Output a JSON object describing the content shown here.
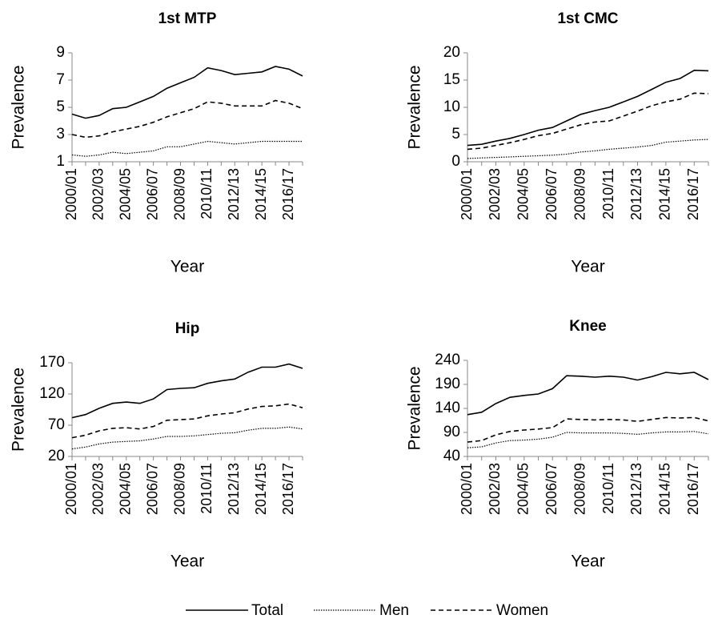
{
  "chart_data": [
    {
      "type": "line",
      "title": "1st MTP",
      "xlabel": "Year",
      "ylabel": "Prevalence",
      "categories": [
        "2000/01",
        null,
        "2002/03",
        null,
        "2004/05",
        null,
        "2006/07",
        null,
        "2008/09",
        null,
        "2010/11",
        null,
        "2012/13",
        null,
        "2014/15",
        null,
        "2016/17",
        null
      ],
      "ylim": [
        1,
        9
      ],
      "yticks": [
        1,
        3,
        5,
        7,
        9
      ],
      "series": [
        {
          "name": "Total",
          "color": "#000000",
          "dash": "solid",
          "values": [
            4.5,
            4.2,
            4.4,
            4.9,
            5.0,
            5.4,
            5.8,
            6.4,
            6.8,
            7.2,
            7.9,
            7.7,
            7.4,
            7.5,
            7.6,
            8.0,
            7.8,
            7.3
          ]
        },
        {
          "name": "Men",
          "color": "#000000",
          "dash": "dotted",
          "values": [
            1.5,
            1.4,
            1.5,
            1.7,
            1.6,
            1.7,
            1.8,
            2.1,
            2.1,
            2.3,
            2.5,
            2.4,
            2.3,
            2.4,
            2.5,
            2.5,
            2.5,
            2.5
          ]
        },
        {
          "name": "Women",
          "color": "#000000",
          "dash": "dashed",
          "values": [
            3.0,
            2.8,
            2.9,
            3.2,
            3.4,
            3.6,
            3.9,
            4.3,
            4.6,
            4.9,
            5.4,
            5.3,
            5.1,
            5.1,
            5.1,
            5.5,
            5.3,
            4.9
          ]
        }
      ]
    },
    {
      "type": "line",
      "title": "1st CMC",
      "xlabel": "Year",
      "ylabel": "Prevalence",
      "categories": [
        "2000/01",
        null,
        "2002/03",
        null,
        "2004/05",
        null,
        "2006/07",
        null,
        "2008/09",
        null,
        "2010/11",
        null,
        "2012/13",
        null,
        "2014/15",
        null,
        "2016/17",
        null
      ],
      "ylim": [
        0,
        20
      ],
      "yticks": [
        0,
        5,
        10,
        15,
        20
      ],
      "series": [
        {
          "color": "#000000",
          "dash": "solid",
          "values": [
            3.0,
            3.2,
            3.8,
            4.3,
            5.0,
            5.8,
            6.3,
            7.5,
            8.7,
            9.4,
            10.0,
            11.0,
            12.0,
            13.3,
            14.6,
            15.3,
            16.8,
            16.7
          ]
        },
        {
          "color": "#000000",
          "dash": "dotted",
          "values": [
            0.6,
            0.7,
            0.8,
            0.9,
            1.0,
            1.1,
            1.2,
            1.4,
            1.8,
            2.0,
            2.3,
            2.5,
            2.7,
            3.0,
            3.6,
            3.8,
            4.0,
            4.1
          ]
        },
        {
          "color": "#000000",
          "dash": "dashed",
          "values": [
            2.3,
            2.5,
            3.0,
            3.5,
            4.1,
            4.8,
            5.2,
            6.0,
            6.8,
            7.3,
            7.5,
            8.4,
            9.3,
            10.3,
            11.0,
            11.5,
            12.6,
            12.5
          ]
        }
      ]
    },
    {
      "type": "line",
      "title": "Hip",
      "xlabel": "Year",
      "ylabel": "Prevalence",
      "categories": [
        "2000/01",
        null,
        "2002/03",
        null,
        "2004/05",
        null,
        "2006/07",
        null,
        "2008/09",
        null,
        "2010/11",
        null,
        "2012/13",
        null,
        "2014/15",
        null,
        "2016/17",
        null
      ],
      "ylim": [
        20,
        170
      ],
      "yticks": [
        20,
        70,
        120,
        170
      ],
      "series": [
        {
          "color": "#000000",
          "dash": "solid",
          "values": [
            82,
            87,
            97,
            105,
            107,
            105,
            112,
            127,
            129,
            130,
            137,
            141,
            144,
            155,
            163,
            163,
            168,
            161
          ]
        },
        {
          "color": "#000000",
          "dash": "dotted",
          "values": [
            32,
            35,
            40,
            43,
            44,
            45,
            48,
            52,
            52,
            53,
            55,
            57,
            58,
            62,
            65,
            65,
            67,
            64
          ]
        },
        {
          "color": "#000000",
          "dash": "dashed",
          "values": [
            50,
            54,
            61,
            65,
            66,
            64,
            68,
            78,
            79,
            80,
            85,
            88,
            90,
            96,
            100,
            101,
            104,
            98
          ]
        }
      ]
    },
    {
      "type": "line",
      "title": "Knee",
      "xlabel": "Year",
      "ylabel": "Prevalence",
      "categories": [
        "2000/01",
        null,
        "2002/03",
        null,
        "2004/05",
        null,
        "2006/07",
        null,
        "2008/09",
        null,
        "2010/11",
        null,
        "2012/13",
        null,
        "2014/15",
        null,
        "2016/17",
        null
      ],
      "ylim": [
        40,
        240
      ],
      "yticks": [
        40,
        90,
        140,
        190,
        240
      ],
      "series": [
        {
          "color": "#000000",
          "dash": "solid",
          "values": [
            127,
            132,
            150,
            163,
            167,
            170,
            181,
            208,
            207,
            205,
            207,
            205,
            199,
            206,
            215,
            212,
            215,
            200
          ]
        },
        {
          "color": "#000000",
          "dash": "dotted",
          "values": [
            58,
            60,
            68,
            73,
            74,
            76,
            80,
            90,
            89,
            89,
            89,
            88,
            86,
            89,
            91,
            91,
            92,
            87
          ]
        },
        {
          "color": "#000000",
          "dash": "dashed",
          "values": [
            70,
            73,
            85,
            92,
            95,
            97,
            100,
            118,
            117,
            116,
            117,
            116,
            113,
            117,
            121,
            120,
            121,
            114
          ]
        }
      ]
    }
  ]
}
